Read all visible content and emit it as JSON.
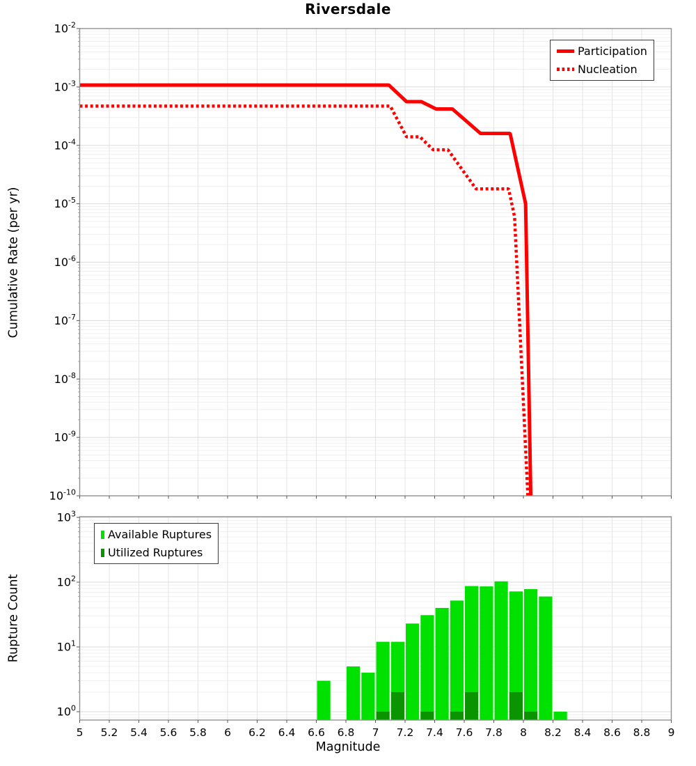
{
  "title": "Riversdale",
  "colors": {
    "line_red": "#FF0000",
    "available_green": "#00E100",
    "utilized_green": "#0A9400",
    "grid_minor": "#F0F0F0",
    "grid_major": "#DBDBDB",
    "grid_vertical": "#E4E4E4",
    "frame": "#909090",
    "tick": "#555555"
  },
  "x_axis": {
    "label": "Magnitude",
    "min": 5,
    "max": 9,
    "tick_step": 0.2,
    "tick_labels": [
      "5",
      "5.2",
      "5.4",
      "5.6",
      "5.8",
      "6",
      "6.2",
      "6.4",
      "6.6",
      "6.8",
      "7",
      "7.2",
      "7.4",
      "7.6",
      "7.8",
      "8",
      "8.2",
      "8.4",
      "8.6",
      "8.8",
      "9"
    ]
  },
  "chart_data": [
    {
      "type": "line",
      "title": "Riversdale",
      "xlabel": "",
      "ylabel": "Cumulative Rate (per yr)",
      "x_scale": "linear",
      "y_scale": "log",
      "xlim": [
        5,
        9
      ],
      "ylim": [
        1e-10,
        0.01
      ],
      "y_tick_exponents": [
        -2,
        -3,
        -4,
        -5,
        -6,
        -7,
        -8,
        -9,
        -10
      ],
      "grid": true,
      "legend_position": "top-right",
      "series": [
        {
          "name": "Participation",
          "line_style": "solid",
          "color": "#FF0000",
          "points": [
            [
              5.0,
              0.00108
            ],
            [
              7.09,
              0.00108
            ],
            [
              7.21,
              0.00056
            ],
            [
              7.31,
              0.00056
            ],
            [
              7.41,
              0.00042
            ],
            [
              7.52,
              0.00042
            ],
            [
              7.71,
              0.00016
            ],
            [
              7.91,
              0.00016
            ],
            [
              8.015,
              1e-05
            ],
            [
              8.05,
              1e-10
            ]
          ]
        },
        {
          "name": "Nucleation",
          "line_style": "dotted",
          "color": "#FF0000",
          "points": [
            [
              5.0,
              0.00047
            ],
            [
              7.1,
              0.00047
            ],
            [
              7.21,
              0.00014
            ],
            [
              7.3,
              0.00014
            ],
            [
              7.39,
              8.4e-05
            ],
            [
              7.49,
              8.4e-05
            ],
            [
              7.68,
              1.8e-05
            ],
            [
              7.9,
              1.8e-05
            ],
            [
              7.94,
              6e-06
            ],
            [
              8.03,
              1e-10
            ]
          ]
        }
      ]
    },
    {
      "type": "bar",
      "title": "",
      "xlabel": "Magnitude",
      "ylabel": "Rupture Count",
      "x_scale": "linear",
      "y_scale": "log",
      "xlim": [
        5,
        9
      ],
      "ylim": [
        0.74,
        1000
      ],
      "y_tick_exponents": [
        0,
        1,
        2,
        3
      ],
      "bin_width": 0.1,
      "grid": true,
      "legend_position": "top-left",
      "series": [
        {
          "name": "Available Ruptures",
          "color": "#00E100",
          "centers": [
            6.65,
            6.85,
            6.95,
            7.05,
            7.15,
            7.25,
            7.35,
            7.45,
            7.55,
            7.65,
            7.75,
            7.85,
            7.95,
            8.05,
            8.15,
            8.25
          ],
          "values": [
            3,
            5,
            4,
            12,
            12,
            23,
            31,
            40,
            52,
            87,
            86,
            103,
            72,
            78,
            60,
            1
          ]
        },
        {
          "name": "Utilized Ruptures",
          "color": "#0A9400",
          "centers": [
            7.05,
            7.15,
            7.35,
            7.55,
            7.65,
            7.95,
            8.05
          ],
          "values": [
            1,
            2,
            1,
            1,
            2,
            2,
            1
          ]
        }
      ]
    }
  ]
}
